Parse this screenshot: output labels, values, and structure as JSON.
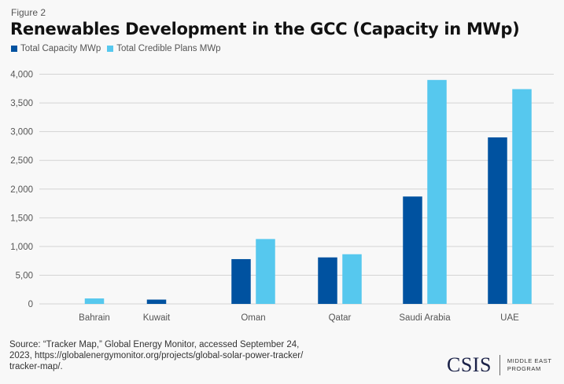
{
  "figure_label": "Figure 2",
  "colors": {
    "capacity": "#0052a0",
    "plans": "#56c8ee",
    "grid": "#d4d4d4",
    "axis_text": "#555555"
  },
  "chart_data": {
    "type": "bar",
    "title": "Renewables Development in the GCC (Capacity in MWp)",
    "xlabel": "",
    "ylabel": "",
    "ylim": [
      0,
      4000
    ],
    "grid": true,
    "legend_position": "top-left",
    "y_ticks": [
      0,
      500,
      1000,
      1500,
      2000,
      2500,
      3000,
      3500,
      4000
    ],
    "y_tick_labels": [
      "0",
      "5,00",
      "1,000",
      "1,500",
      "2,000",
      "2,500",
      "3,000",
      "3,500",
      "4,000"
    ],
    "categories": [
      "Bahrain",
      "Kuwait",
      "Oman",
      "Qatar",
      "Saudi Arabia",
      "UAE"
    ],
    "series": [
      {
        "name": "Total Capacity MWp",
        "values": [
          0,
          75,
          780,
          810,
          1870,
          2900
        ]
      },
      {
        "name": "Total Credible Plans MWp",
        "values": [
          95,
          0,
          1130,
          865,
          3900,
          3740
        ]
      }
    ]
  },
  "source": {
    "line1": "Source: “Tracker Map,” Global Energy Monitor, accessed September 24,",
    "line2": "2023, https://globalenergymonitor.org/projects/global-solar-power-tracker/",
    "line3": "tracker-map/."
  },
  "logo": {
    "name": "CSIS",
    "program_line1": "MIDDLE EAST",
    "program_line2": "PROGRAM"
  }
}
